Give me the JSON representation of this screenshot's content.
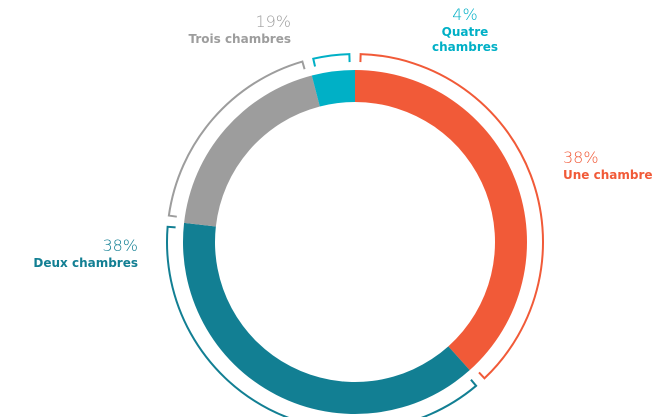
{
  "chart_data": {
    "type": "donut",
    "categories": [
      "Une chambre",
      "Deux chambres",
      "Trois chambres",
      "Quatre chambres"
    ],
    "values": [
      38,
      38,
      19,
      4
    ],
    "value_labels": [
      "38%",
      "38%",
      "19%",
      "4%"
    ],
    "colors": [
      "#f15a38",
      "#127f93",
      "#9d9d9d",
      "#00b0c6"
    ]
  }
}
